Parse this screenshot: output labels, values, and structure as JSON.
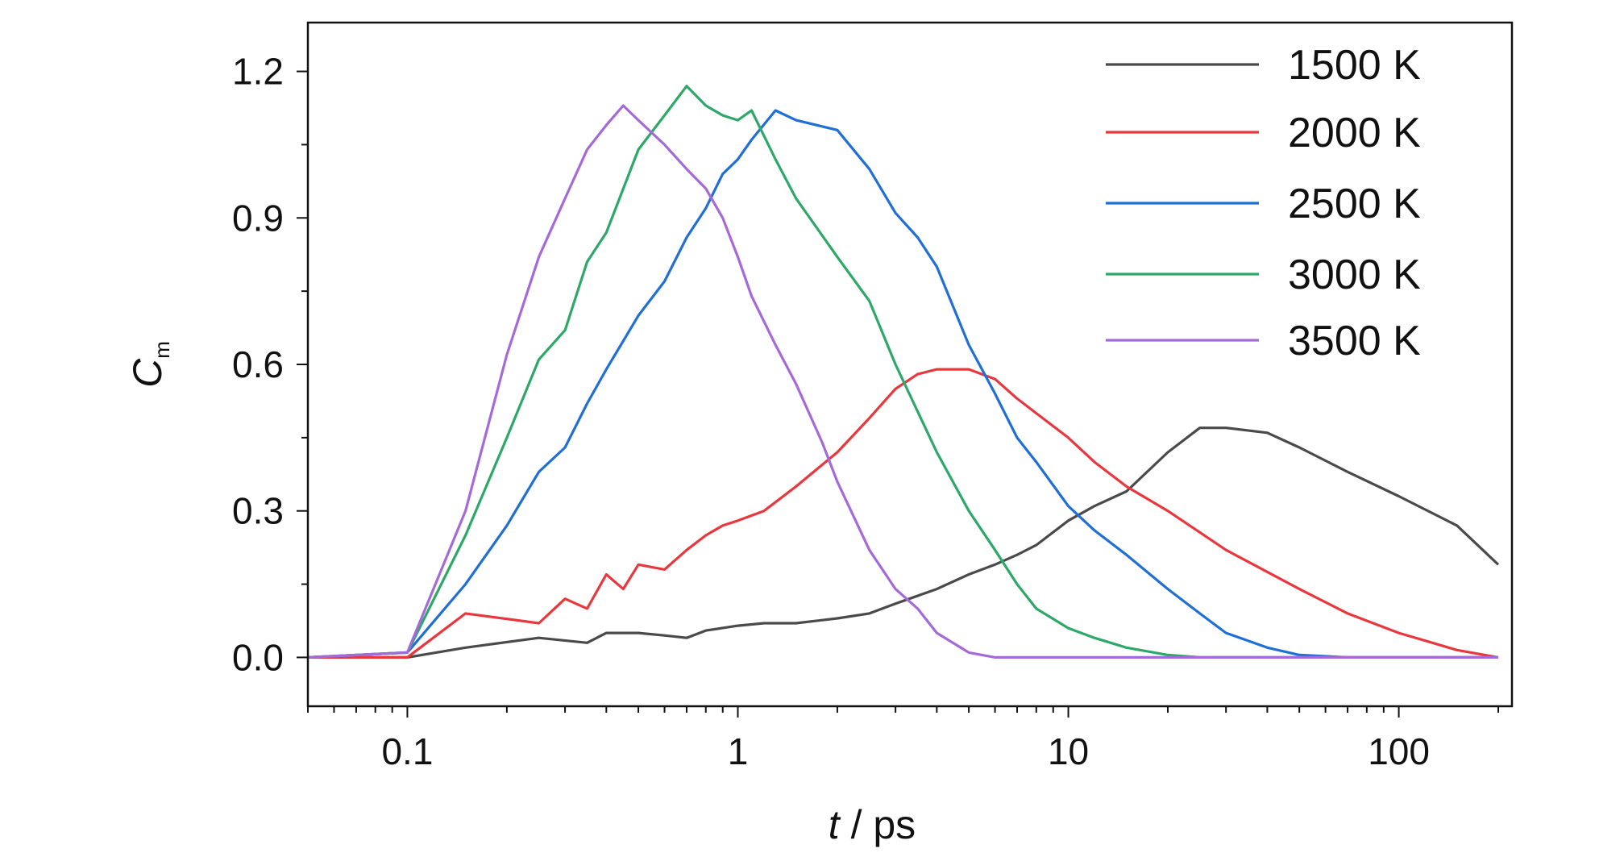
{
  "chart_data": {
    "type": "line",
    "xlabel_var": "t",
    "xlabel_unit": " / ps",
    "ylabel_main": "C",
    "ylabel_sub": "m",
    "xscale": "log",
    "xlim": [
      0.05,
      220
    ],
    "ylim": [
      -0.1,
      1.3
    ],
    "xticks": [
      0.1,
      1,
      10,
      100
    ],
    "xtick_labels": [
      "0.1",
      "1",
      "10",
      "100"
    ],
    "yticks": [
      0.0,
      0.3,
      0.6,
      0.9,
      1.2
    ],
    "ytick_labels": [
      "0.0",
      "0.3",
      "0.6",
      "0.9",
      "1.2"
    ],
    "grid": false,
    "legend_position": "top-right",
    "series": [
      {
        "name": "1500 K",
        "color": "#4a4a4a",
        "x": [
          0.05,
          0.1,
          0.15,
          0.25,
          0.35,
          0.4,
          0.5,
          0.6,
          0.7,
          0.8,
          1.0,
          1.2,
          1.5,
          2.0,
          2.5,
          3.0,
          4.0,
          5.0,
          6.0,
          7.0,
          8.0,
          10.0,
          12.0,
          15.0,
          20.0,
          25.0,
          30.0,
          40.0,
          50.0,
          70.0,
          100.0,
          150.0,
          200.0
        ],
        "y": [
          0.0,
          0.0,
          0.02,
          0.04,
          0.03,
          0.05,
          0.05,
          0.045,
          0.04,
          0.055,
          0.065,
          0.07,
          0.07,
          0.08,
          0.09,
          0.11,
          0.14,
          0.17,
          0.19,
          0.21,
          0.23,
          0.28,
          0.31,
          0.34,
          0.42,
          0.47,
          0.47,
          0.46,
          0.43,
          0.38,
          0.33,
          0.27,
          0.19
        ]
      },
      {
        "name": "2000 K",
        "color": "#e8383d",
        "x": [
          0.05,
          0.1,
          0.15,
          0.25,
          0.3,
          0.35,
          0.4,
          0.45,
          0.5,
          0.6,
          0.7,
          0.8,
          0.9,
          1.0,
          1.2,
          1.5,
          2.0,
          2.5,
          3.0,
          3.5,
          4.0,
          5.0,
          6.0,
          7.0,
          8.0,
          10.0,
          12.0,
          15.0,
          20.0,
          30.0,
          50.0,
          70.0,
          100.0,
          150.0,
          200.0
        ],
        "y": [
          0.0,
          0.0,
          0.09,
          0.07,
          0.12,
          0.1,
          0.17,
          0.14,
          0.19,
          0.18,
          0.22,
          0.25,
          0.27,
          0.28,
          0.3,
          0.35,
          0.42,
          0.49,
          0.55,
          0.58,
          0.59,
          0.59,
          0.57,
          0.53,
          0.5,
          0.45,
          0.4,
          0.35,
          0.3,
          0.22,
          0.14,
          0.09,
          0.05,
          0.015,
          0.0
        ]
      },
      {
        "name": "2500 K",
        "color": "#1f6fd6",
        "x": [
          0.05,
          0.1,
          0.15,
          0.2,
          0.25,
          0.3,
          0.35,
          0.4,
          0.5,
          0.6,
          0.7,
          0.8,
          0.9,
          1.0,
          1.1,
          1.3,
          1.5,
          2.0,
          2.5,
          3.0,
          3.5,
          4.0,
          5.0,
          6.0,
          7.0,
          8.0,
          10.0,
          12.0,
          15.0,
          20.0,
          25.0,
          30.0,
          40.0,
          50.0,
          70.0,
          100.0,
          200.0
        ],
        "y": [
          0.0,
          0.01,
          0.15,
          0.27,
          0.38,
          0.43,
          0.52,
          0.59,
          0.7,
          0.77,
          0.86,
          0.92,
          0.99,
          1.02,
          1.06,
          1.12,
          1.1,
          1.08,
          1.0,
          0.91,
          0.86,
          0.8,
          0.64,
          0.54,
          0.45,
          0.4,
          0.31,
          0.26,
          0.21,
          0.14,
          0.09,
          0.05,
          0.02,
          0.005,
          0.0,
          0.0,
          0.0
        ]
      },
      {
        "name": "3000 K",
        "color": "#2ea868",
        "x": [
          0.05,
          0.1,
          0.15,
          0.2,
          0.25,
          0.3,
          0.35,
          0.4,
          0.5,
          0.6,
          0.7,
          0.8,
          0.9,
          1.0,
          1.1,
          1.3,
          1.5,
          2.0,
          2.5,
          3.0,
          4.0,
          5.0,
          6.0,
          7.0,
          8.0,
          10.0,
          12.0,
          15.0,
          20.0,
          25.0,
          30.0,
          50.0,
          100.0,
          200.0
        ],
        "y": [
          0.0,
          0.01,
          0.25,
          0.45,
          0.61,
          0.67,
          0.81,
          0.87,
          1.04,
          1.11,
          1.17,
          1.13,
          1.11,
          1.1,
          1.12,
          1.02,
          0.94,
          0.82,
          0.73,
          0.6,
          0.42,
          0.3,
          0.22,
          0.15,
          0.1,
          0.06,
          0.04,
          0.02,
          0.005,
          0.0,
          0.0,
          0.0,
          0.0,
          0.0
        ]
      },
      {
        "name": "3500 K",
        "color": "#a56ad9",
        "x": [
          0.05,
          0.1,
          0.15,
          0.2,
          0.25,
          0.3,
          0.35,
          0.4,
          0.45,
          0.5,
          0.6,
          0.7,
          0.8,
          0.9,
          1.0,
          1.1,
          1.3,
          1.5,
          1.8,
          2.0,
          2.5,
          3.0,
          3.5,
          4.0,
          5.0,
          6.0,
          7.0,
          8.0,
          10.0,
          20.0,
          50.0,
          100.0,
          200.0
        ],
        "y": [
          0.0,
          0.01,
          0.3,
          0.62,
          0.82,
          0.94,
          1.04,
          1.09,
          1.13,
          1.1,
          1.05,
          1.0,
          0.96,
          0.9,
          0.82,
          0.74,
          0.64,
          0.56,
          0.44,
          0.36,
          0.22,
          0.14,
          0.1,
          0.05,
          0.01,
          0.0,
          0.0,
          0.0,
          0.0,
          0.0,
          0.0,
          0.0,
          0.0
        ]
      }
    ]
  }
}
